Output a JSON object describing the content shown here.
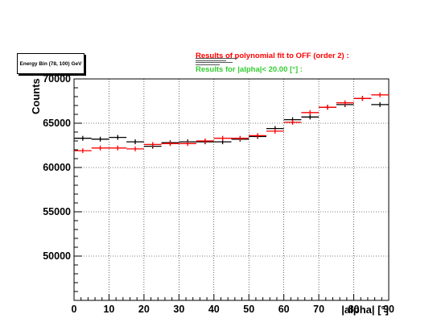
{
  "legend_box": {
    "energy_bin": "Energy Bin (78, 100) GeV"
  },
  "fit_title": "Results of polynomial fit to OFF (order  2) :",
  "results_title": "Results for |alpha|<  20.00 [°] :",
  "colors": {
    "off": "#ff0000",
    "on": "#000000",
    "results": "#33cc33",
    "grid": "#000000"
  },
  "chart_data": {
    "type": "scatter",
    "xlabel": "|alpha|  [°]",
    "ylabel": "Counts",
    "xlim": [
      0,
      90
    ],
    "ylim": [
      45000,
      70000
    ],
    "grid": true,
    "x_ticks": [
      0,
      10,
      20,
      30,
      40,
      50,
      60,
      70,
      80,
      90
    ],
    "y_ticks": [
      50000,
      55000,
      60000,
      65000,
      70000
    ],
    "x_tick_labels": [
      "0",
      "10",
      "20",
      "30",
      "40",
      "50",
      "60",
      "70",
      "80",
      "90"
    ],
    "y_tick_labels": [
      "50000",
      "55000",
      "60000",
      "65000",
      "70000"
    ],
    "bin_width": 5,
    "x": [
      2.5,
      7.5,
      12.5,
      17.5,
      22.5,
      27.5,
      32.5,
      37.5,
      42.5,
      47.5,
      52.5,
      57.5,
      62.5,
      67.5,
      72.5,
      77.5,
      82.5,
      87.5
    ],
    "series": [
      {
        "color": "#000000",
        "values": [
          63300,
          63200,
          63400,
          62900,
          62400,
          62800,
          62900,
          62900,
          62900,
          63200,
          63500,
          64400,
          65400,
          65700,
          66800,
          67100,
          67800,
          67100
        ]
      },
      {
        "color": "#ff0000",
        "values": [
          61900,
          62200,
          62200,
          62100,
          62600,
          62700,
          62700,
          63000,
          63300,
          63300,
          63600,
          64100,
          65100,
          66200,
          66800,
          67300,
          67800,
          68200
        ]
      }
    ]
  }
}
